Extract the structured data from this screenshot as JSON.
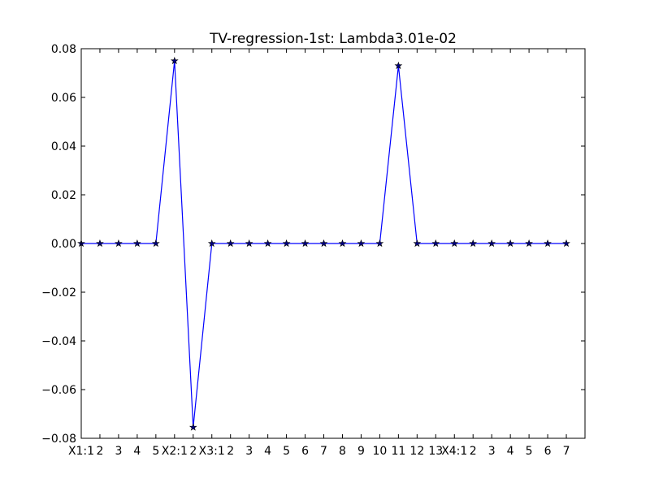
{
  "chart_data": {
    "type": "line",
    "title": "TV-regression-1st: Lambda3.01e-02",
    "xlabel": "",
    "ylabel": "",
    "categories": [
      "X1:1",
      "2",
      "3",
      "4",
      "5",
      "X2:1",
      "2",
      "X3:1",
      "2",
      "3",
      "4",
      "5",
      "6",
      "7",
      "8",
      "9",
      "10",
      "11",
      "12",
      "13",
      "X4:1",
      "2",
      "3",
      "4",
      "5",
      "6",
      "7"
    ],
    "xtick_labels": [
      "X1:1",
      "2",
      "3",
      "4",
      "5",
      "X2:1",
      "2",
      "X3:1",
      "2",
      "3",
      "4",
      "5",
      "6",
      "7",
      "8",
      "9",
      "10",
      "11",
      "12",
      "13",
      "X4:1",
      "2",
      "3",
      "4",
      "5",
      "6",
      "7"
    ],
    "ytick_labels": [
      "0.08",
      "0.06",
      "0.04",
      "0.02",
      "0.00",
      "−0.02",
      "−0.04",
      "−0.06",
      "−0.08"
    ],
    "yticks": [
      0.08,
      0.06,
      0.04,
      0.02,
      0.0,
      -0.02,
      -0.04,
      -0.06,
      -0.08
    ],
    "series": [
      {
        "values": [
          0,
          0,
          0,
          0,
          0,
          0.075,
          -0.0755,
          0,
          0,
          0,
          0,
          0,
          0,
          0,
          0,
          0,
          0,
          0.073,
          0,
          0,
          0,
          0,
          0,
          0,
          0,
          0,
          0
        ],
        "color": "#0000ff",
        "marker": "star"
      }
    ],
    "xlim": [
      0,
      27
    ],
    "ylim": [
      -0.08,
      0.08
    ],
    "grid": false,
    "legend": "none"
  }
}
